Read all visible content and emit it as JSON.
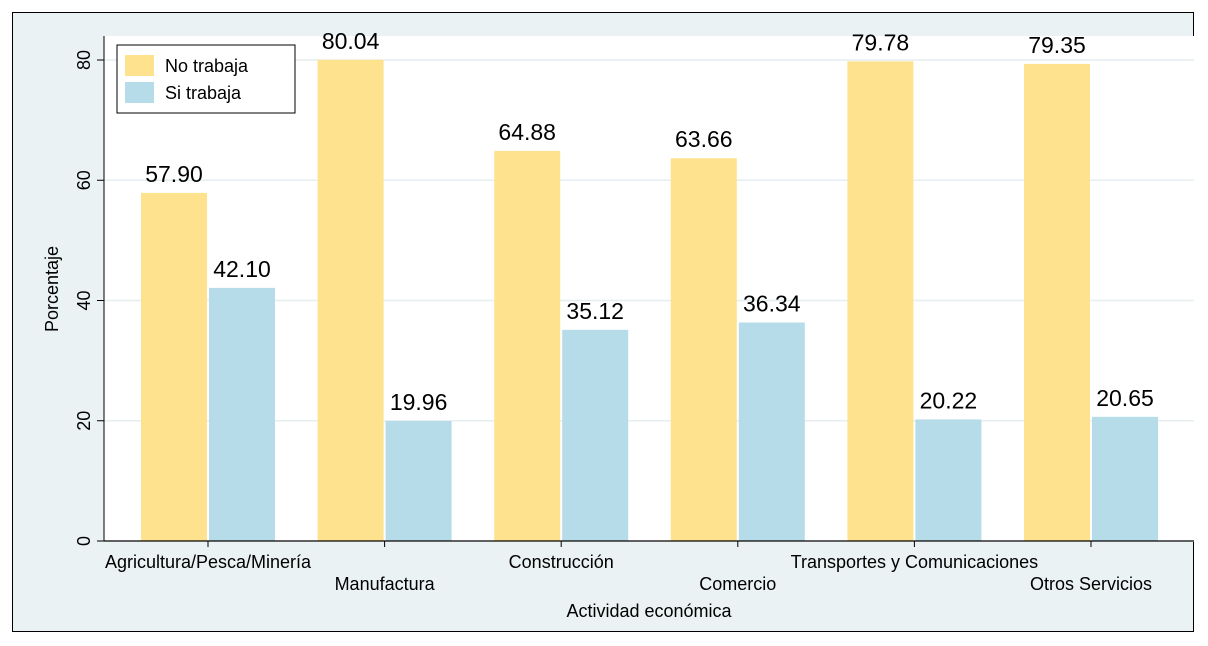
{
  "chart_data": {
    "type": "bar",
    "xlabel": "Actividad económica",
    "ylabel": "Porcentaje",
    "ylim": [
      0,
      80
    ],
    "yticks": [
      "0",
      "20",
      "40",
      "60",
      "80"
    ],
    "grid": true,
    "legend_position": "top-left",
    "categories": [
      "Agricultura/Pesca/Minería",
      "Manufactura",
      "Construcción",
      "Comercio",
      "Transportes y Comunicaciones",
      "Otros Servicios"
    ],
    "series": [
      {
        "name": "No trabaja",
        "color": "#ffe28e",
        "values": [
          57.9,
          80.04,
          64.88,
          63.66,
          79.78,
          79.35
        ],
        "labels": [
          "57.90",
          "80.04",
          "64.88",
          "63.66",
          "79.78",
          "79.35"
        ]
      },
      {
        "name": "Si trabaja",
        "color": "#b5dce8",
        "values": [
          42.1,
          19.96,
          35.12,
          36.34,
          20.22,
          20.65
        ],
        "labels": [
          "42.10",
          "19.96",
          "35.12",
          "36.34",
          "20.22",
          "20.65"
        ]
      }
    ]
  }
}
